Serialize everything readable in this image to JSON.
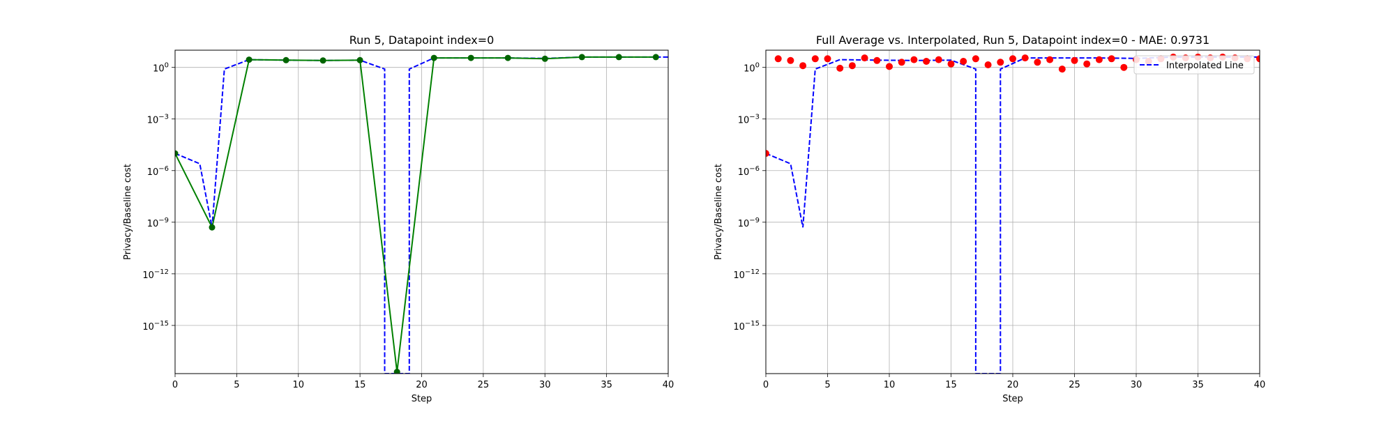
{
  "chart_data": [
    {
      "type": "line",
      "title": "Run 5, Datapoint index=0",
      "xlabel": "Step",
      "ylabel": "Privacy/Baseline cost",
      "xlim": [
        0,
        40
      ],
      "ylim_log10": [
        -17.8,
        1.0
      ],
      "yscale": "log",
      "grid": true,
      "x_ticks": [
        0,
        5,
        10,
        15,
        20,
        25,
        30,
        35,
        40
      ],
      "y_ticks": [
        {
          "exp": 0,
          "label": "10",
          "sup": "0"
        },
        {
          "exp": -3,
          "label": "10",
          "sup": "−3"
        },
        {
          "exp": -6,
          "label": "10",
          "sup": "−6"
        },
        {
          "exp": -9,
          "label": "10",
          "sup": "−9"
        },
        {
          "exp": -12,
          "label": "10",
          "sup": "−12"
        },
        {
          "exp": -15,
          "label": "10",
          "sup": "−15"
        }
      ],
      "series": [
        {
          "style": "dashed",
          "color": "#0000ff",
          "x": [
            0,
            2,
            3,
            4,
            6,
            9,
            12,
            15,
            17,
            17,
            19,
            19,
            21,
            24,
            27,
            30,
            33,
            36,
            39,
            40
          ],
          "y_log10": [
            -5.0,
            -5.6,
            -9.3,
            -0.1,
            0.45,
            0.42,
            0.4,
            0.42,
            -0.1,
            -17.8,
            -17.8,
            -0.1,
            0.55,
            0.55,
            0.55,
            0.52,
            0.6,
            0.6,
            0.6,
            0.6
          ]
        },
        {
          "style": "solid-markers",
          "color": "#008000",
          "marker_color": "#006400",
          "x": [
            0,
            3,
            6,
            9,
            12,
            15,
            18,
            21,
            24,
            27,
            30,
            33,
            36,
            39
          ],
          "y_log10": [
            -5.0,
            -9.3,
            0.45,
            0.42,
            0.4,
            0.42,
            -17.7,
            0.55,
            0.55,
            0.55,
            0.5,
            0.6,
            0.6,
            0.6
          ]
        }
      ]
    },
    {
      "type": "line",
      "title": "Full Average vs. Interpolated, Run 5, Datapoint index=0 - MAE: 0.9731",
      "xlabel": "Step",
      "ylabel": "Privacy/Baseline cost",
      "xlim": [
        0,
        40
      ],
      "ylim_log10": [
        -17.8,
        1.0
      ],
      "yscale": "log",
      "grid": true,
      "legend_position": "top-right",
      "x_ticks": [
        0,
        5,
        10,
        15,
        20,
        25,
        30,
        35,
        40
      ],
      "y_ticks": [
        {
          "exp": 0,
          "label": "10",
          "sup": "0"
        },
        {
          "exp": -3,
          "label": "10",
          "sup": "−3"
        },
        {
          "exp": -6,
          "label": "10",
          "sup": "−6"
        },
        {
          "exp": -9,
          "label": "10",
          "sup": "−9"
        },
        {
          "exp": -12,
          "label": "10",
          "sup": "−12"
        },
        {
          "exp": -15,
          "label": "10",
          "sup": "−15"
        }
      ],
      "series": [
        {
          "name": "Interpolated Line",
          "style": "dashed",
          "color": "#0000ff",
          "x": [
            0,
            2,
            3,
            4,
            6,
            9,
            12,
            15,
            17,
            17,
            19,
            19,
            21,
            24,
            27,
            30,
            33,
            36,
            39,
            40
          ],
          "y_log10": [
            -5.0,
            -5.6,
            -9.3,
            -0.1,
            0.45,
            0.42,
            0.4,
            0.42,
            -0.1,
            -17.8,
            -17.8,
            -0.1,
            0.55,
            0.55,
            0.55,
            0.52,
            0.6,
            0.6,
            0.6,
            0.6
          ]
        },
        {
          "style": "scatter",
          "color": "#ff0000",
          "x": [
            0,
            1,
            2,
            3,
            4,
            5,
            6,
            7,
            8,
            9,
            10,
            11,
            12,
            13,
            14,
            15,
            16,
            17,
            18,
            19,
            20,
            21,
            22,
            23,
            24,
            25,
            26,
            27,
            28,
            29,
            30,
            31,
            32,
            33,
            34,
            35,
            36,
            37,
            38,
            39,
            40
          ],
          "y_log10": [
            -5.0,
            0.5,
            0.4,
            0.1,
            0.5,
            0.5,
            -0.05,
            0.1,
            0.55,
            0.4,
            0.05,
            0.3,
            0.45,
            0.35,
            0.45,
            0.2,
            0.35,
            0.5,
            0.15,
            0.3,
            0.5,
            0.55,
            0.3,
            0.45,
            -0.1,
            0.4,
            0.2,
            0.45,
            0.5,
            0.0,
            0.45,
            0.35,
            0.5,
            0.6,
            0.55,
            0.6,
            0.55,
            0.6,
            0.55,
            0.5,
            0.5
          ]
        }
      ]
    }
  ]
}
